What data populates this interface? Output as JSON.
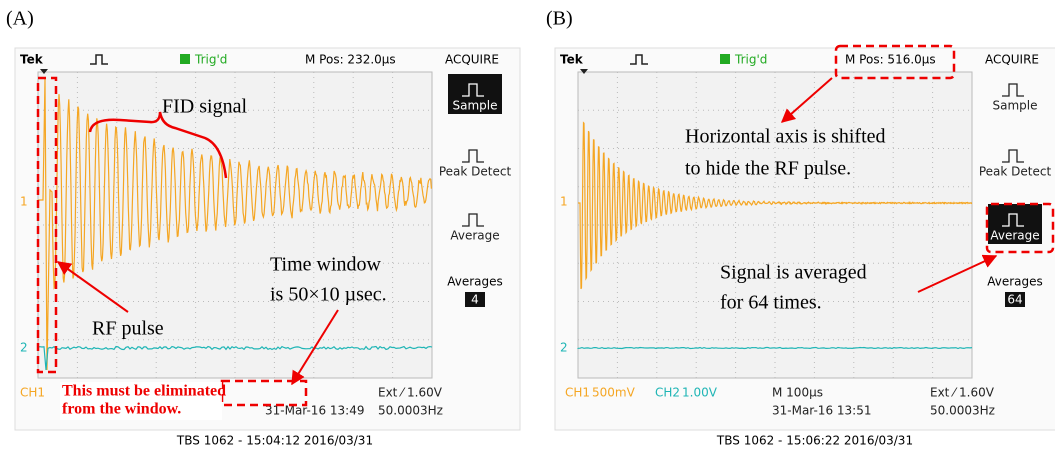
{
  "panels": [
    {
      "label": "(A)",
      "brand": "Tek",
      "trigger": "Trig'd",
      "position": "M Pos: 232.0µs",
      "menu_title": "ACQUIRE",
      "menu": [
        "Sample",
        "Peak Detect",
        "Average"
      ],
      "averages_label": "Averages",
      "averages_value": "4",
      "channel_markers": [
        "1",
        "2"
      ],
      "status": {
        "ch1": "CH1",
        "trigger_level": "Ext ⁄ 1.60V",
        "date": "31-Mar-16 13:49",
        "frequency": "50.0003Hz"
      },
      "annotations": [
        "FID signal",
        "RF pulse",
        "Time window",
        "is 50×10 µsec.",
        "This must be eliminated",
        "from the window."
      ],
      "caption": "TBS 1062 - 15:04:12   2016/03/31"
    },
    {
      "label": "(B)",
      "brand": "Tek",
      "trigger": "Trig'd",
      "position": "M Pos: 516.0µs",
      "menu_title": "ACQUIRE",
      "menu": [
        "Sample",
        "Peak Detect",
        "Average"
      ],
      "averages_label": "Averages",
      "averages_value": "64",
      "channel_markers": [
        "1",
        "2"
      ],
      "status": {
        "ch1": "CH1",
        "ch1_scale": "500mV",
        "ch2": "CH2",
        "ch2_scale": "1.00V",
        "timebase": "M 100µs",
        "trigger_level": "Ext ⁄ 1.60V",
        "date": "31-Mar-16 13:51",
        "frequency": "50.0003Hz"
      },
      "annotations": [
        "Horizontal axis is shifted",
        "to hide the RF pulse.",
        "Signal is averaged",
        "for 64 times."
      ],
      "caption": "TBS 1062 - 15:06:22   2016/03/31"
    }
  ]
}
